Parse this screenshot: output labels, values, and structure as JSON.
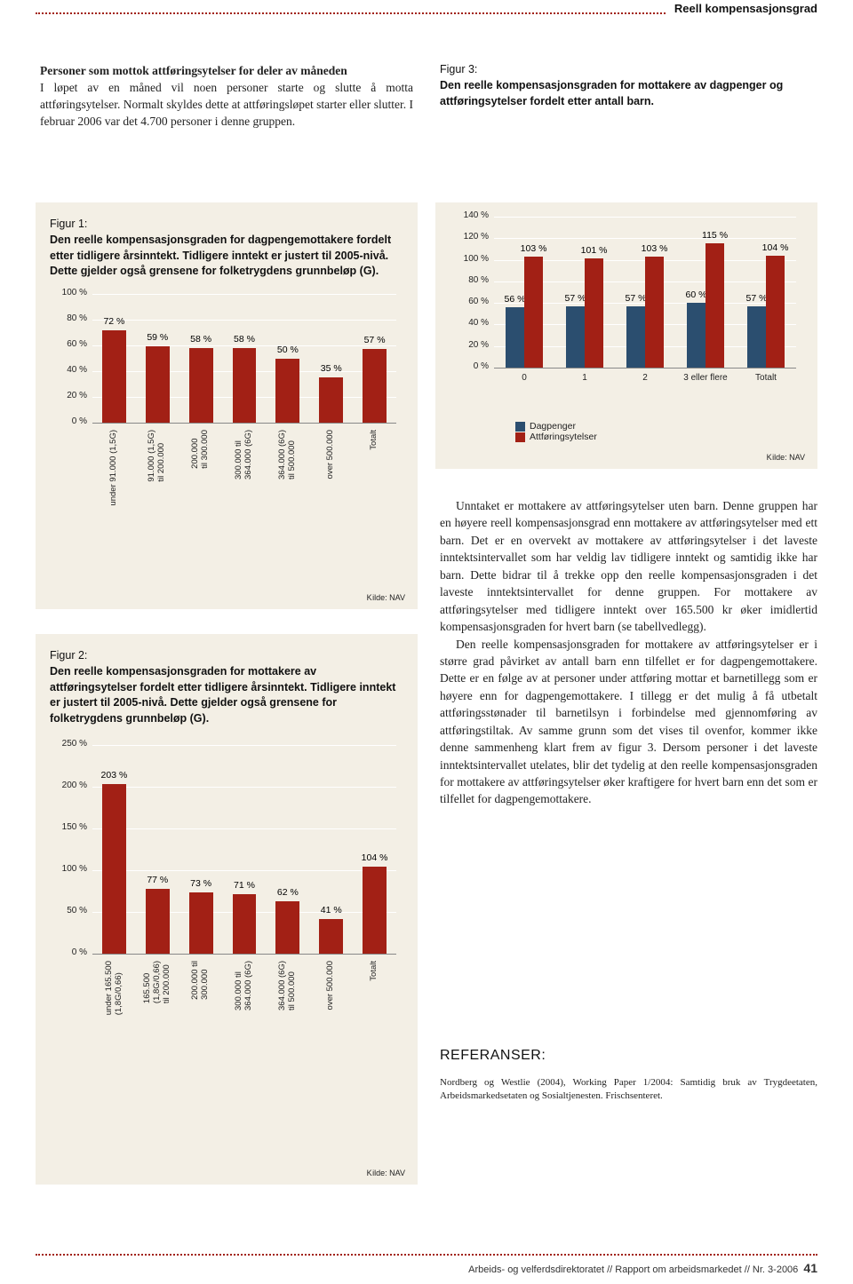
{
  "colors": {
    "accent": "#a22015",
    "bar_red": "#a22015",
    "bar_blue": "#2b4e6f",
    "panel_bg": "#f3efe5",
    "grid": "#ffffff",
    "text": "#222222"
  },
  "header": {
    "section": "Reell kompensasjonsgrad"
  },
  "intro": {
    "bold": "Personer som mottok attføringsytelser for deler av måneden",
    "text": "I løpet av en måned vil noen personer starte og slutte å motta attføringsytelser. Normalt skyldes dette at attføringsløpet starter eller slutter. I februar 2006 var det 4.700 personer i denne gruppen."
  },
  "fig3": {
    "label": "Figur 3:",
    "title": "Den reelle kompensasjonsgraden for mottakere av dagpenger og attføringsytelser fordelt etter antall barn."
  },
  "fig1": {
    "label": "Figur 1:",
    "title": "Den reelle kompensasjonsgraden for dagpengemottakere fordelt etter tidligere årsinntekt. Tidligere inntekt er justert til 2005-nivå. Dette gjelder også grensene for folketrygdens grunnbeløp (G)."
  },
  "fig2": {
    "label": "Figur 2:",
    "title": "Den reelle kompensasjonsgraden for mottakere av attføringsytelser fordelt etter tidligere årsinntekt. Tidligere inntekt er justert til 2005-nivå. Dette gjelder også grensene for folketrygdens grunnbeløp (G)."
  },
  "chart1": {
    "type": "bar",
    "ylim": [
      0,
      100
    ],
    "ystep": 20,
    "yunit": " %",
    "bar_color": "#a22015",
    "bg": "#f3efe5",
    "categories": [
      "under 91.000 (1,5G)",
      "91.000 (1,5G)\ntil 200.000",
      "200.000\ntil 300.000",
      "300.000 til\n364.000 (6G)",
      "364.000 (6G)\ntil 500.000",
      "over 500.000",
      "Totalt"
    ],
    "values": [
      72,
      59,
      58,
      58,
      50,
      35,
      57
    ],
    "value_fmt": " %",
    "kilde": "Kilde: NAV"
  },
  "chart2": {
    "type": "bar",
    "ylim": [
      0,
      250
    ],
    "ystep": 50,
    "yunit": " %",
    "bar_color": "#a22015",
    "bg": "#f3efe5",
    "categories": [
      "under 165.500\n(1,8G/0,66)",
      "165.500\n(1,8G/0,66)\ntil 200.000",
      "200.000 til\n300.000",
      "300.000 til\n364.000 (6G)",
      "364.000 (6G)\ntil 500.000",
      "over 500.000",
      "Totalt"
    ],
    "values": [
      203,
      77,
      73,
      71,
      62,
      41,
      104
    ],
    "value_fmt": " %",
    "kilde": "Kilde: NAV"
  },
  "chart3": {
    "type": "grouped-bar",
    "ylim": [
      0,
      140
    ],
    "ystep": 20,
    "yunit": " %",
    "bg": "#f3efe5",
    "series": [
      {
        "name": "Dagpenger",
        "color": "#2b4e6f",
        "values": [
          56,
          57,
          57,
          60,
          57
        ]
      },
      {
        "name": "Attføringsytelser",
        "color": "#a22015",
        "values": [
          103,
          101,
          103,
          115,
          104
        ]
      }
    ],
    "categories": [
      "0",
      "1",
      "2",
      "3 eller flere",
      "Totalt"
    ],
    "value_fmt": " %",
    "kilde": "Kilde: NAV"
  },
  "body": {
    "para": "Unntaket er mottakere av attføringsytelser uten barn. Denne gruppen har en høyere reell kompensasjonsgrad enn mottakere av attføringsytelser med ett barn. Det er en overvekt av mottakere av attføringsytelser i det laveste inntektsintervallet som har veldig lav tidligere inntekt og samtidig ikke har barn. Dette bidrar til å trekke opp den reelle kompensasjonsgraden i det laveste inntektsintervallet for denne gruppen. For mottakere av attføringsytelser med tidligere inntekt over 165.500 kr øker imidlertid kompensasjonsgraden for hvert barn (se tabellvedlegg).",
    "para2": "Den reelle kompensasjonsgraden for mottakere av attføringsytelser er i større grad påvirket av antall barn enn tilfellet er for dagpengemottakere. Dette er en følge av at personer under attføring mottar et barnetillegg som er høyere enn for dagpengemottakere. I tillegg er det mulig å få utbetalt attføringsstønader til barnetilsyn i forbindelse med gjennomføring av attføringstiltak. Av samme grunn som det vises til ovenfor, kommer ikke denne sammenheng klart frem av figur 3. Dersom personer i det laveste inntektsintervallet utelates, blir det tydelig at den reelle kompensasjonsgraden for mottakere av attføringsytelser øker kraftigere for hvert barn enn det som er tilfellet for dagpengemottakere."
  },
  "refs": {
    "head": "REFERANSER:",
    "text": "Nordberg og Westlie (2004), Working Paper 1/2004: Samtidig bruk av Trygdeetaten, Arbeidsmarkedsetaten og Sosialtjenesten. Frischsenteret."
  },
  "footer": {
    "text": "Arbeids- og velferdsdirektoratet // Rapport om arbeidsmarkedet // Nr. 3-2006",
    "page": "41"
  }
}
